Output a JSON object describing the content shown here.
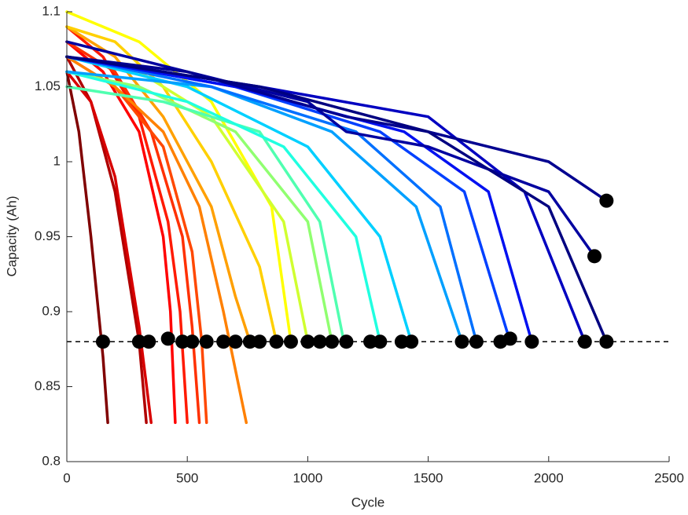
{
  "chart_data": {
    "type": "line",
    "x_label": "Cycle",
    "y_label": "Capacity (Ah)",
    "xlim": [
      0,
      2500
    ],
    "ylim": [
      0.8,
      1.1
    ],
    "xticks": [
      0,
      500,
      1000,
      1500,
      2000,
      2500
    ],
    "yticks": [
      0.8,
      0.85,
      0.9,
      0.95,
      1,
      1.05,
      1.1
    ],
    "threshold": 0.88,
    "series": [
      {
        "color": "#800000",
        "x": [
          0,
          50,
          100,
          150,
          170
        ],
        "values": [
          1.06,
          1.02,
          0.95,
          0.87,
          0.826
        ]
      },
      {
        "color": "#b00000",
        "x": [
          0,
          100,
          200,
          300,
          330
        ],
        "values": [
          1.07,
          1.04,
          0.98,
          0.88,
          0.826
        ]
      },
      {
        "color": "#d80000",
        "x": [
          0,
          100,
          200,
          300,
          350
        ],
        "values": [
          1.06,
          1.04,
          0.99,
          0.89,
          0.826
        ]
      },
      {
        "color": "#ff0000",
        "x": [
          0,
          150,
          300,
          400,
          430,
          450
        ],
        "values": [
          1.08,
          1.06,
          1.02,
          0.95,
          0.9,
          0.826
        ]
      },
      {
        "color": "#ff1a00",
        "x": [
          0,
          150,
          300,
          420,
          470,
          500
        ],
        "values": [
          1.09,
          1.07,
          1.03,
          0.96,
          0.9,
          0.826
        ]
      },
      {
        "color": "#ff3000",
        "x": [
          0,
          200,
          350,
          480,
          520,
          550
        ],
        "values": [
          1.08,
          1.06,
          1.02,
          0.95,
          0.89,
          0.826
        ]
      },
      {
        "color": "#ff4800",
        "x": [
          0,
          200,
          400,
          520,
          560,
          580
        ],
        "values": [
          1.07,
          1.05,
          1.01,
          0.94,
          0.88,
          0.826
        ]
      },
      {
        "color": "#ff8000",
        "x": [
          0,
          200,
          400,
          550,
          650,
          745
        ],
        "values": [
          1.07,
          1.05,
          1.02,
          0.97,
          0.9,
          0.826
        ]
      },
      {
        "color": "#ffa000",
        "x": [
          0,
          200,
          400,
          600,
          700,
          760
        ],
        "values": [
          1.09,
          1.07,
          1.03,
          0.97,
          0.91,
          0.88
        ]
      },
      {
        "color": "#ffd000",
        "x": [
          0,
          200,
          400,
          600,
          800,
          870
        ],
        "values": [
          1.09,
          1.08,
          1.05,
          1.0,
          0.93,
          0.88
        ]
      },
      {
        "color": "#ffff00",
        "x": [
          0,
          300,
          600,
          850,
          930
        ],
        "values": [
          1.1,
          1.08,
          1.04,
          0.97,
          0.88
        ]
      },
      {
        "color": "#d0ff30",
        "x": [
          0,
          300,
          600,
          900,
          1000
        ],
        "values": [
          1.07,
          1.06,
          1.03,
          0.96,
          0.88
        ]
      },
      {
        "color": "#90ff70",
        "x": [
          0,
          300,
          700,
          1000,
          1100
        ],
        "values": [
          1.06,
          1.05,
          1.02,
          0.96,
          0.88
        ]
      },
      {
        "color": "#50ffb0",
        "x": [
          0,
          400,
          800,
          1050,
          1150
        ],
        "values": [
          1.05,
          1.04,
          1.02,
          0.96,
          0.88
        ]
      },
      {
        "color": "#20ffe0",
        "x": [
          0,
          500,
          900,
          1200,
          1300
        ],
        "values": [
          1.06,
          1.04,
          1.01,
          0.95,
          0.88
        ]
      },
      {
        "color": "#00d0ff",
        "x": [
          0,
          500,
          1000,
          1300,
          1430
        ],
        "values": [
          1.07,
          1.05,
          1.01,
          0.95,
          0.88
        ]
      },
      {
        "color": "#00a0ff",
        "x": [
          0,
          600,
          1100,
          1450,
          1640
        ],
        "values": [
          1.06,
          1.05,
          1.02,
          0.97,
          0.88
        ]
      },
      {
        "color": "#0070ff",
        "x": [
          0,
          600,
          1200,
          1550,
          1700
        ],
        "values": [
          1.07,
          1.05,
          1.02,
          0.97,
          0.88
        ]
      },
      {
        "color": "#0040ff",
        "x": [
          0,
          700,
          1300,
          1650,
          1840
        ],
        "values": [
          1.07,
          1.05,
          1.02,
          0.98,
          0.88
        ]
      },
      {
        "color": "#0010f0",
        "x": [
          0,
          700,
          1400,
          1750,
          1930
        ],
        "values": [
          1.07,
          1.05,
          1.02,
          0.98,
          0.88
        ]
      },
      {
        "color": "#0000c0",
        "x": [
          0,
          800,
          1500,
          1900,
          2150
        ],
        "values": [
          1.07,
          1.05,
          1.03,
          0.98,
          0.88
        ]
      },
      {
        "color": "#0000a0",
        "x": [
          0,
          500,
          1000,
          1160,
          1500,
          2000,
          2190
        ],
        "values": [
          1.08,
          1.06,
          1.04,
          1.02,
          1.01,
          0.98,
          0.937
        ]
      },
      {
        "color": "#000090",
        "x": [
          0,
          500,
          1160,
          1500,
          2000,
          2240
        ],
        "values": [
          1.07,
          1.06,
          1.03,
          1.02,
          1.0,
          0.974
        ]
      },
      {
        "color": "#000080",
        "x": [
          0,
          800,
          1500,
          2000,
          2240
        ],
        "values": [
          1.07,
          1.05,
          1.02,
          0.97,
          0.88
        ]
      }
    ],
    "markers": {
      "color": "#000000",
      "x": [
        150,
        300,
        340,
        420,
        480,
        520,
        580,
        650,
        700,
        760,
        800,
        870,
        930,
        1000,
        1050,
        1100,
        1160,
        1260,
        1300,
        1390,
        1430,
        1640,
        1700,
        1800,
        1840,
        1930,
        2150,
        2240,
        2190,
        2240
      ],
      "values": [
        0.88,
        0.88,
        0.88,
        0.882,
        0.88,
        0.88,
        0.88,
        0.88,
        0.88,
        0.88,
        0.88,
        0.88,
        0.88,
        0.88,
        0.88,
        0.88,
        0.88,
        0.88,
        0.88,
        0.88,
        0.88,
        0.88,
        0.88,
        0.88,
        0.882,
        0.88,
        0.88,
        0.88,
        0.937,
        0.974
      ]
    }
  }
}
